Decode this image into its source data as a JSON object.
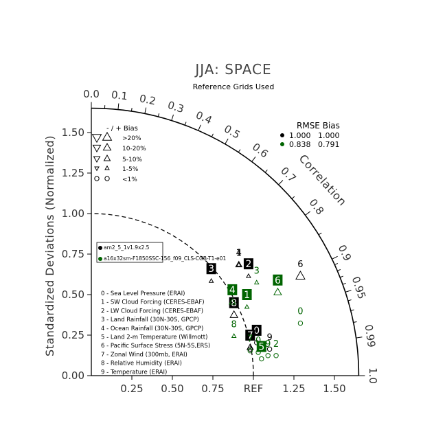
{
  "chart_data": {
    "type": "taylor-diagram",
    "title": "JJA: SPACE",
    "subtitle": "Reference Grids Used",
    "ylabel": "Standardized Deviations (Normalized)",
    "correlation_label": "Correlation",
    "std_range": [
      0,
      1.65
    ],
    "std_ticks": [
      {
        "value": 0.0,
        "label": "0.00"
      },
      {
        "value": 0.25,
        "label": "0.25"
      },
      {
        "value": 0.5,
        "label": "0.50"
      },
      {
        "value": 0.75,
        "label": "0.75"
      },
      {
        "value": 1.0,
        "label": "1.00"
      },
      {
        "value": 1.25,
        "label": "1.25"
      },
      {
        "value": 1.5,
        "label": "1.50"
      }
    ],
    "x_ticks": [
      {
        "value": 0.25,
        "label": "0.25"
      },
      {
        "value": 0.5,
        "label": "0.50"
      },
      {
        "value": 0.75,
        "label": "0.75"
      },
      {
        "value": 1.0,
        "label": "REF"
      },
      {
        "value": 1.25,
        "label": "1.25"
      },
      {
        "value": 1.5,
        "label": "1.50"
      }
    ],
    "corr_ticks": [
      {
        "value": 0.0,
        "label": "0.0"
      },
      {
        "value": 0.1,
        "label": "0.1"
      },
      {
        "value": 0.2,
        "label": "0.2"
      },
      {
        "value": 0.3,
        "label": "0.3"
      },
      {
        "value": 0.4,
        "label": "0.4"
      },
      {
        "value": 0.5,
        "label": "0.5"
      },
      {
        "value": 0.6,
        "label": "0.6"
      },
      {
        "value": 0.7,
        "label": "0.7"
      },
      {
        "value": 0.8,
        "label": "0.8"
      },
      {
        "value": 0.9,
        "label": "0.9"
      },
      {
        "value": 0.95,
        "label": "0.95"
      },
      {
        "value": 0.99,
        "label": "0.99"
      },
      {
        "value": 1.0,
        "label": "1.0"
      }
    ],
    "bias_legend": {
      "header": "-   /   +         Bias",
      "rows": [
        {
          "label": ">20%",
          "glyph": "triangle",
          "size": 6.5
        },
        {
          "label": "10-20%",
          "glyph": "triangle",
          "size": 5.5
        },
        {
          "label": "5-10%",
          "glyph": "triangle",
          "size": 4.5
        },
        {
          "label": "1-5%",
          "glyph": "triangle",
          "size": 3
        },
        {
          "label": "<1%",
          "glyph": "circle",
          "size": 3.2
        }
      ]
    },
    "rmse_legend": {
      "header": "RMSE  Bias",
      "rows": [
        {
          "color": "#000000",
          "rmse": "1.000",
          "bias": "1.000"
        },
        {
          "color": "#006400",
          "rmse": "0.838",
          "bias": "0.791"
        }
      ]
    },
    "cases": [
      {
        "name": "am2_5_1v1.9x2.5",
        "color": "#000000"
      },
      {
        "name": "a16x32sm-F1850SSC-156_f09_CLS-CGB-T1-e01",
        "color": "#006400"
      }
    ],
    "variables": [
      {
        "id": "0",
        "label": "0 - Sea Level Pressure (ERAI)"
      },
      {
        "id": "1",
        "label": "1 - SW Cloud Forcing (CERES-EBAF)"
      },
      {
        "id": "2",
        "label": "2 - LW Cloud Forcing (CERES-EBAF)"
      },
      {
        "id": "3",
        "label": "3 - Land Rainfall (30N-30S, GPCP)"
      },
      {
        "id": "4",
        "label": "4 - Ocean Rainfall (30N-30S, GPCP)"
      },
      {
        "id": "5",
        "label": "5 - Land 2-m Temperature (Willmott)"
      },
      {
        "id": "6",
        "label": "6 - Pacific Surface Stress (5N-5S,ERS)"
      },
      {
        "id": "7",
        "label": "7 - Zonal Wind (300mb, ERAI)"
      },
      {
        "id": "8",
        "label": "8 - Relative Humidity (ERAI)"
      },
      {
        "id": "9",
        "label": "9 - Temperature (ERAI)"
      }
    ],
    "points": [
      {
        "series": 0,
        "var": "0",
        "x": 1.02,
        "y": 0.28,
        "boxed": true,
        "bias": "<1%"
      },
      {
        "series": 0,
        "var": "1",
        "x": 0.91,
        "y": 0.76,
        "boxed": false,
        "bias": "1-5%"
      },
      {
        "series": 0,
        "var": "2",
        "x": 0.97,
        "y": 0.69,
        "boxed": true,
        "bias": "1-5%"
      },
      {
        "series": 0,
        "var": "3",
        "x": 0.74,
        "y": 0.66,
        "boxed": true,
        "bias": "1-5%"
      },
      {
        "series": 0,
        "var": "4",
        "x": 0.91,
        "y": 0.76,
        "boxed": false,
        "bias": "5-10%"
      },
      {
        "series": 0,
        "var": "5",
        "x": 0.98,
        "y": 0.24,
        "boxed": false,
        "bias": "<1%"
      },
      {
        "series": 0,
        "var": "6",
        "x": 1.29,
        "y": 0.69,
        "boxed": false,
        "bias": ">20%"
      },
      {
        "series": 0,
        "var": "7",
        "x": 0.98,
        "y": 0.25,
        "boxed": true,
        "bias": "5-10%"
      },
      {
        "series": 0,
        "var": "8",
        "x": 0.88,
        "y": 0.45,
        "boxed": true,
        "bias": "10-20%"
      },
      {
        "series": 0,
        "var": "9",
        "x": 1.1,
        "y": 0.24,
        "boxed": false,
        "bias": "<1%"
      },
      {
        "series": 1,
        "var": "0",
        "x": 1.03,
        "y": 0.22,
        "boxed": false,
        "bias": "<1%"
      },
      {
        "series": 1,
        "var": "1",
        "x": 0.96,
        "y": 0.5,
        "boxed": true,
        "bias": "1-5%"
      },
      {
        "series": 1,
        "var": "2",
        "x": 1.14,
        "y": 0.2,
        "boxed": false,
        "bias": "<1%"
      },
      {
        "series": 1,
        "var": "3",
        "x": 1.02,
        "y": 0.65,
        "boxed": false,
        "bias": "1-5%"
      },
      {
        "series": 1,
        "var": "4",
        "x": 0.87,
        "y": 0.53,
        "boxed": true,
        "bias": "5-10%"
      },
      {
        "series": 1,
        "var": "5",
        "x": 1.05,
        "y": 0.18,
        "boxed": true,
        "bias": "<1%"
      },
      {
        "series": 1,
        "var": "6",
        "x": 1.15,
        "y": 0.59,
        "boxed": true,
        "bias": "10-20%"
      },
      {
        "series": 1,
        "var": "7",
        "x": 0.98,
        "y": 0.23,
        "boxed": false,
        "bias": "<1%"
      },
      {
        "series": 1,
        "var": "8",
        "x": 0.88,
        "y": 0.32,
        "boxed": false,
        "bias": "1-5%"
      },
      {
        "series": 1,
        "var": "9",
        "x": 1.09,
        "y": 0.2,
        "boxed": false,
        "bias": "<1%"
      },
      {
        "series": 1,
        "var": "0",
        "x": 1.29,
        "y": 0.4,
        "boxed": false,
        "bias": "<1%"
      }
    ],
    "grid": false,
    "legend_position": "upper-left inside plot"
  }
}
